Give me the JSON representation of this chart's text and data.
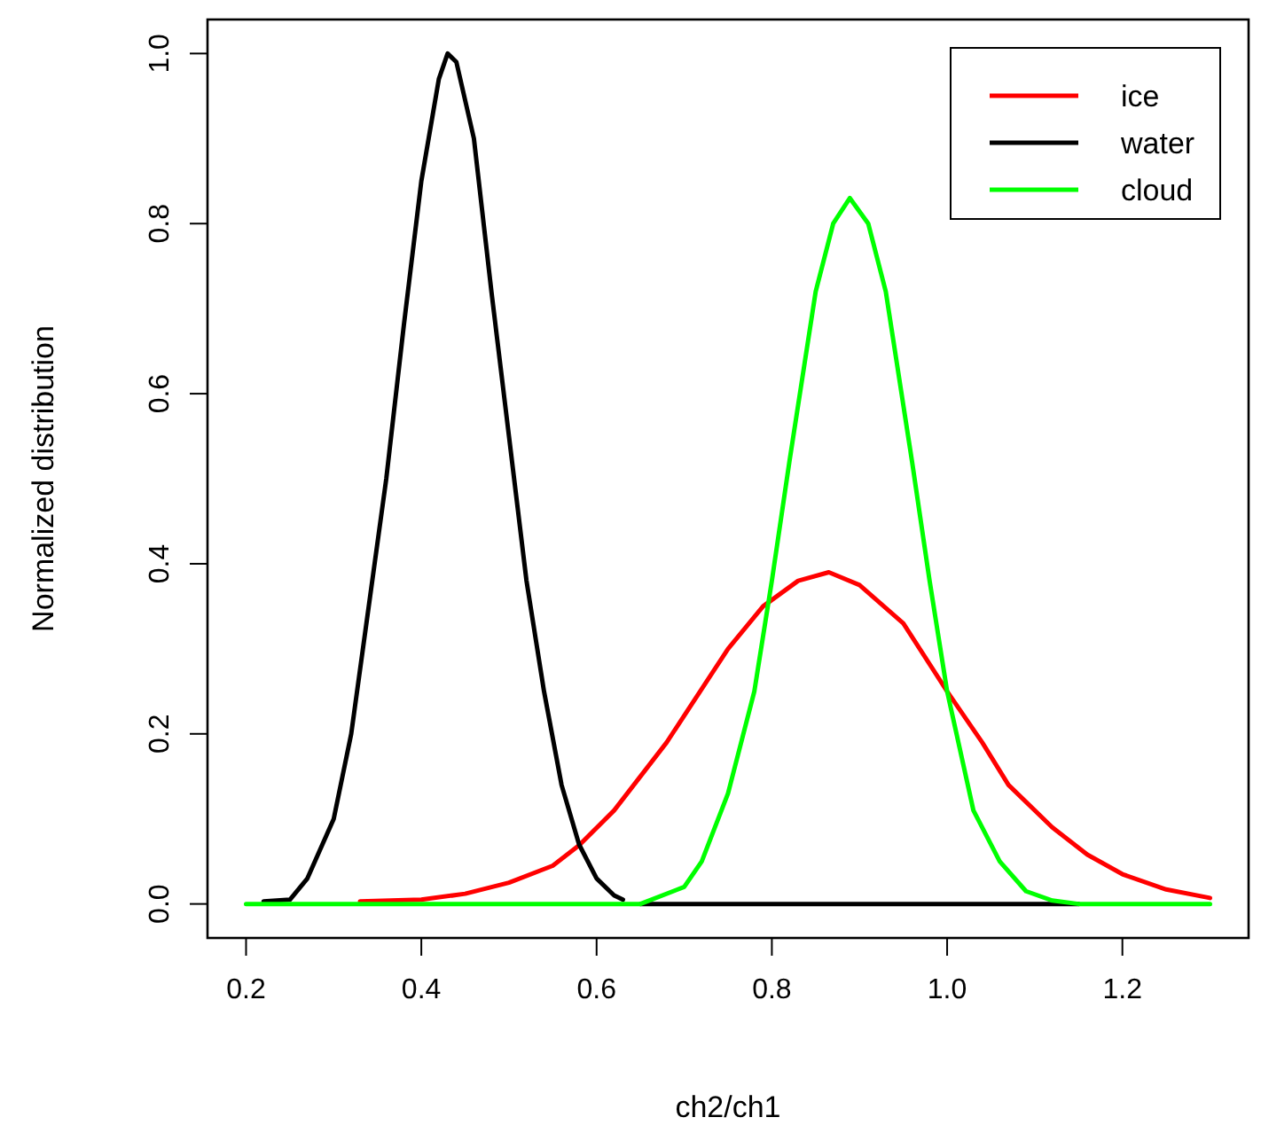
{
  "chart_data": {
    "type": "line",
    "xlabel": "ch2/ch1",
    "ylabel": "Normalized distribution",
    "xlim": [
      0.156,
      1.344
    ],
    "ylim": [
      -0.04,
      1.04
    ],
    "xticks": [
      0.2,
      0.4,
      0.6,
      0.8,
      {
        "value": 1,
        "label": "1.0"
      },
      1.2
    ],
    "yticks": [
      {
        "value": 0,
        "label": "0.0"
      },
      0.2,
      0.4,
      0.6,
      0.8,
      {
        "value": 1,
        "label": "1.0"
      }
    ],
    "grid": false,
    "legend": "top right",
    "marker": "none",
    "line_style": "solid",
    "series": [
      {
        "name": "ice",
        "color": "#ff0000",
        "x": [
          0.33,
          0.4,
          0.45,
          0.5,
          0.55,
          0.58,
          0.62,
          0.68,
          0.75,
          0.79,
          0.83,
          0.865,
          0.9,
          0.95,
          1.0,
          1.04,
          1.07,
          1.12,
          1.16,
          1.2,
          1.25,
          1.3
        ],
        "values": [
          0.003,
          0.005,
          0.012,
          0.025,
          0.045,
          0.069,
          0.11,
          0.19,
          0.3,
          0.35,
          0.38,
          0.39,
          0.375,
          0.33,
          0.25,
          0.19,
          0.14,
          0.09,
          0.058,
          0.035,
          0.017,
          0.007
        ]
      },
      {
        "name": "water",
        "color": "#000000",
        "x": [
          0.22,
          0.25,
          0.27,
          0.3,
          0.32,
          0.34,
          0.36,
          0.38,
          0.4,
          0.42,
          0.43,
          0.44,
          0.46,
          0.48,
          0.5,
          0.52,
          0.54,
          0.56,
          0.58,
          0.6,
          0.62,
          0.63,
          0.64,
          0.65,
          1.15
        ],
        "values": [
          0.003,
          0.005,
          0.03,
          0.1,
          0.2,
          0.35,
          0.5,
          0.68,
          0.85,
          0.97,
          1.0,
          0.99,
          0.9,
          0.72,
          0.55,
          0.38,
          0.25,
          0.14,
          0.07,
          0.03,
          0.01,
          0.005,
          null,
          0,
          0
        ]
      },
      {
        "name": "cloud",
        "color": "#00ff00",
        "x": [
          0.2,
          0.65,
          0.7,
          0.72,
          0.75,
          0.78,
          0.8,
          0.82,
          0.85,
          0.87,
          0.889,
          0.91,
          0.93,
          0.96,
          0.98,
          1.0,
          1.03,
          1.06,
          1.09,
          1.12,
          1.15,
          1.3
        ],
        "values": [
          0,
          0,
          0.02,
          0.05,
          0.13,
          0.25,
          0.38,
          0.52,
          0.72,
          0.8,
          0.83,
          0.8,
          0.72,
          0.52,
          0.38,
          0.25,
          0.11,
          0.05,
          0.015,
          0.004,
          0,
          0
        ]
      }
    ]
  }
}
